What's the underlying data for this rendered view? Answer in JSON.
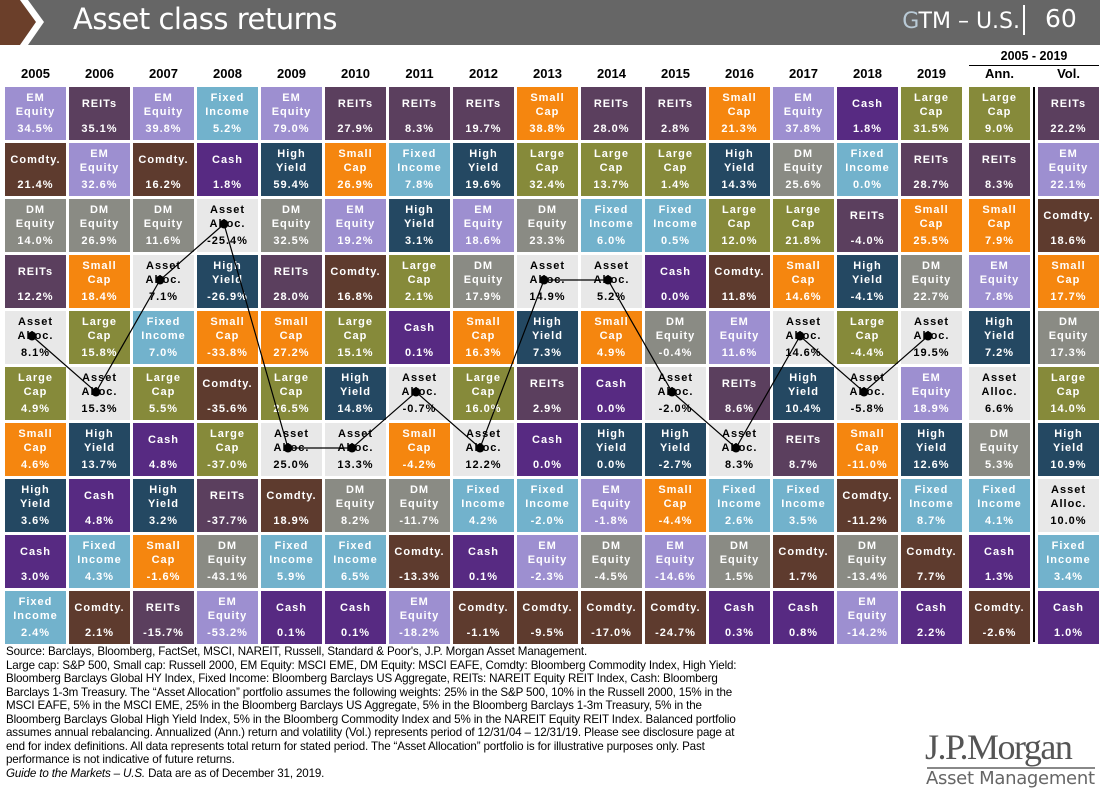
{
  "header": {
    "title": "Asset class returns",
    "gtm_prefix": "G",
    "gtm_rest": "TM – U.S.",
    "page_number": "60"
  },
  "range_label": "2005 - 2019",
  "columns": [
    "2005",
    "2006",
    "2007",
    "2008",
    "2009",
    "2010",
    "2011",
    "2012",
    "2013",
    "2014",
    "2015",
    "2016",
    "2017",
    "2018",
    "2019",
    "Ann.",
    "Vol."
  ],
  "assets": {
    "em": {
      "label": "EM\nEquity",
      "color": "#9d8fd0"
    },
    "reits": {
      "label": "REITs",
      "color": "#5b3f5e"
    },
    "fi": {
      "label": "Fixed\nIncome",
      "color": "#72b2cc"
    },
    "comdty": {
      "label": "Comdty.",
      "color": "#5e3b2e"
    },
    "cash": {
      "label": "Cash",
      "color": "#572a82"
    },
    "hy": {
      "label": "High\nYield",
      "color": "#244862"
    },
    "small": {
      "label": "Small\nCap",
      "color": "#f5860f"
    },
    "large": {
      "label": "Large\nCap",
      "color": "#868a3a"
    },
    "dm": {
      "label": "DM\nEquity",
      "color": "#8a8b84"
    },
    "aa": {
      "label": "Asset\nAlloc.",
      "color": "#e8e8e8",
      "text_color": "#000000"
    }
  },
  "grid": [
    [
      [
        "em",
        "34.5%"
      ],
      [
        "comdty",
        "21.4%"
      ],
      [
        "dm",
        "14.0%"
      ],
      [
        "reits",
        "12.2%"
      ],
      [
        "aa",
        "8.1%"
      ],
      [
        "large",
        "4.9%"
      ],
      [
        "small",
        "4.6%"
      ],
      [
        "hy",
        "3.6%"
      ],
      [
        "cash",
        "3.0%"
      ],
      [
        "fi",
        "2.4%"
      ]
    ],
    [
      [
        "reits",
        "35.1%"
      ],
      [
        "em",
        "32.6%"
      ],
      [
        "dm",
        "26.9%"
      ],
      [
        "small",
        "18.4%"
      ],
      [
        "large",
        "15.8%"
      ],
      [
        "aa",
        "15.3%"
      ],
      [
        "hy",
        "13.7%"
      ],
      [
        "cash",
        "4.8%"
      ],
      [
        "fi",
        "4.3%"
      ],
      [
        "comdty",
        "2.1%"
      ]
    ],
    [
      [
        "em",
        "39.8%"
      ],
      [
        "comdty",
        "16.2%"
      ],
      [
        "dm",
        "11.6%"
      ],
      [
        "aa",
        "7.1%"
      ],
      [
        "fi",
        "7.0%"
      ],
      [
        "large",
        "5.5%"
      ],
      [
        "cash",
        "4.8%"
      ],
      [
        "hy",
        "3.2%"
      ],
      [
        "small",
        "-1.6%"
      ],
      [
        "reits",
        "-15.7%"
      ]
    ],
    [
      [
        "fi",
        "5.2%"
      ],
      [
        "cash",
        "1.8%"
      ],
      [
        "aa",
        "-25.4%"
      ],
      [
        "hy",
        "-26.9%"
      ],
      [
        "small",
        "-33.8%"
      ],
      [
        "comdty",
        "-35.6%"
      ],
      [
        "large",
        "-37.0%"
      ],
      [
        "reits",
        "-37.7%"
      ],
      [
        "dm",
        "-43.1%"
      ],
      [
        "em",
        "-53.2%"
      ]
    ],
    [
      [
        "em",
        "79.0%"
      ],
      [
        "hy",
        "59.4%"
      ],
      [
        "dm",
        "32.5%"
      ],
      [
        "reits",
        "28.0%"
      ],
      [
        "small",
        "27.2%"
      ],
      [
        "large",
        "26.5%"
      ],
      [
        "aa",
        "25.0%"
      ],
      [
        "comdty",
        "18.9%"
      ],
      [
        "fi",
        "5.9%"
      ],
      [
        "cash",
        "0.1%"
      ]
    ],
    [
      [
        "reits",
        "27.9%"
      ],
      [
        "small",
        "26.9%"
      ],
      [
        "em",
        "19.2%"
      ],
      [
        "comdty",
        "16.8%"
      ],
      [
        "large",
        "15.1%"
      ],
      [
        "hy",
        "14.8%"
      ],
      [
        "aa",
        "13.3%"
      ],
      [
        "dm",
        "8.2%"
      ],
      [
        "fi",
        "6.5%"
      ],
      [
        "cash",
        "0.1%"
      ]
    ],
    [
      [
        "reits",
        "8.3%"
      ],
      [
        "fi",
        "7.8%"
      ],
      [
        "hy",
        "3.1%"
      ],
      [
        "large",
        "2.1%"
      ],
      [
        "cash",
        "0.1%"
      ],
      [
        "aa",
        "-0.7%"
      ],
      [
        "small",
        "-4.2%"
      ],
      [
        "dm",
        "-11.7%"
      ],
      [
        "comdty",
        "-13.3%"
      ],
      [
        "em",
        "-18.2%"
      ]
    ],
    [
      [
        "reits",
        "19.7%"
      ],
      [
        "hy",
        "19.6%"
      ],
      [
        "em",
        "18.6%"
      ],
      [
        "dm",
        "17.9%"
      ],
      [
        "small",
        "16.3%"
      ],
      [
        "large",
        "16.0%"
      ],
      [
        "aa",
        "12.2%"
      ],
      [
        "fi",
        "4.2%"
      ],
      [
        "cash",
        "0.1%"
      ],
      [
        "comdty",
        "-1.1%"
      ]
    ],
    [
      [
        "small",
        "38.8%"
      ],
      [
        "large",
        "32.4%"
      ],
      [
        "dm",
        "23.3%"
      ],
      [
        "aa",
        "14.9%"
      ],
      [
        "hy",
        "7.3%"
      ],
      [
        "reits",
        "2.9%"
      ],
      [
        "cash",
        "0.0%"
      ],
      [
        "fi",
        "-2.0%"
      ],
      [
        "em",
        "-2.3%"
      ],
      [
        "comdty",
        "-9.5%"
      ]
    ],
    [
      [
        "reits",
        "28.0%"
      ],
      [
        "large",
        "13.7%"
      ],
      [
        "fi",
        "6.0%"
      ],
      [
        "aa",
        "5.2%"
      ],
      [
        "small",
        "4.9%"
      ],
      [
        "cash",
        "0.0%"
      ],
      [
        "hy",
        "0.0%"
      ],
      [
        "em",
        "-1.8%"
      ],
      [
        "dm",
        "-4.5%"
      ],
      [
        "comdty",
        "-17.0%"
      ]
    ],
    [
      [
        "reits",
        "2.8%"
      ],
      [
        "large",
        "1.4%"
      ],
      [
        "fi",
        "0.5%"
      ],
      [
        "cash",
        "0.0%"
      ],
      [
        "dm",
        "-0.4%"
      ],
      [
        "aa",
        "-2.0%"
      ],
      [
        "hy",
        "-2.7%"
      ],
      [
        "small",
        "-4.4%"
      ],
      [
        "em",
        "-14.6%"
      ],
      [
        "comdty",
        "-24.7%"
      ]
    ],
    [
      [
        "small",
        "21.3%"
      ],
      [
        "hy",
        "14.3%"
      ],
      [
        "large",
        "12.0%"
      ],
      [
        "comdty",
        "11.8%"
      ],
      [
        "em",
        "11.6%"
      ],
      [
        "reits",
        "8.6%"
      ],
      [
        "aa",
        "8.3%"
      ],
      [
        "fi",
        "2.6%"
      ],
      [
        "dm",
        "1.5%"
      ],
      [
        "cash",
        "0.3%"
      ]
    ],
    [
      [
        "em",
        "37.8%"
      ],
      [
        "dm",
        "25.6%"
      ],
      [
        "large",
        "21.8%"
      ],
      [
        "small",
        "14.6%"
      ],
      [
        "aa",
        "14.6%"
      ],
      [
        "hy",
        "10.4%"
      ],
      [
        "reits",
        "8.7%"
      ],
      [
        "fi",
        "3.5%"
      ],
      [
        "comdty",
        "1.7%"
      ],
      [
        "cash",
        "0.8%"
      ]
    ],
    [
      [
        "cash",
        "1.8%"
      ],
      [
        "fi",
        "0.0%"
      ],
      [
        "reits",
        "-4.0%"
      ],
      [
        "hy",
        "-4.1%"
      ],
      [
        "large",
        "-4.4%"
      ],
      [
        "aa",
        "-5.8%"
      ],
      [
        "small",
        "-11.0%"
      ],
      [
        "comdty",
        "-11.2%"
      ],
      [
        "dm",
        "-13.4%"
      ],
      [
        "em",
        "-14.2%"
      ]
    ],
    [
      [
        "large",
        "31.5%"
      ],
      [
        "reits",
        "28.7%"
      ],
      [
        "small",
        "25.5%"
      ],
      [
        "dm",
        "22.7%"
      ],
      [
        "aa",
        "19.5%"
      ],
      [
        "em",
        "18.9%"
      ],
      [
        "hy",
        "12.6%"
      ],
      [
        "fi",
        "8.7%"
      ],
      [
        "comdty",
        "7.7%"
      ],
      [
        "cash",
        "2.2%"
      ]
    ],
    [
      [
        "large",
        "9.0%"
      ],
      [
        "reits",
        "8.3%"
      ],
      [
        "small",
        "7.9%"
      ],
      [
        "em",
        "7.8%"
      ],
      [
        "hy",
        "7.2%"
      ],
      [
        "aa",
        "6.6%"
      ],
      [
        "dm",
        "5.3%"
      ],
      [
        "fi",
        "4.1%"
      ],
      [
        "cash",
        "1.3%"
      ],
      [
        "comdty",
        "-2.6%"
      ]
    ],
    [
      [
        "reits",
        "22.2%"
      ],
      [
        "em",
        "22.1%"
      ],
      [
        "comdty",
        "18.6%"
      ],
      [
        "small",
        "17.7%"
      ],
      [
        "dm",
        "17.3%"
      ],
      [
        "large",
        "14.0%"
      ],
      [
        "hy",
        "10.9%"
      ],
      [
        "aa",
        "10.0%"
      ],
      [
        "fi",
        "3.4%"
      ],
      [
        "cash",
        "1.0%"
      ]
    ]
  ],
  "footer": {
    "lines": [
      "Source: Barclays, Bloomberg, FactSet, MSCI, NAREIT, Russell, Standard & Poor's, J.P. Morgan Asset Management.",
      "Large cap: S&P 500, Small cap: Russell 2000, EM Equity: MSCI EME, DM Equity: MSCI EAFE, Comdty: Bloomberg Commodity Index, High Yield:",
      "Bloomberg Barclays Global HY Index, Fixed Income: Bloomberg Barclays US Aggregate, REITs: NAREIT Equity REIT Index, Cash: Bloomberg",
      "Barclays 1-3m Treasury. The “Asset Allocation” portfolio assumes the following weights: 25% in the S&P 500, 10% in the Russell 2000, 15% in the",
      "MSCI EAFE, 5% in the MSCI EME, 25% in the Bloomberg Barclays US Aggregate, 5% in the Bloomberg Barclays 1-3m Treasury, 5% in the",
      "Bloomberg Barclays Global High Yield Index, 5% in the Bloomberg Commodity Index and 5% in the NAREIT Equity REIT Index. Balanced portfolio",
      "assumes annual rebalancing. Annualized (Ann.) return and volatility (Vol.) represents period of 12/31/04 – 12/31/19. Please see disclosure page at",
      "end for index definitions. All data represents total return for stated period. The “Asset Allocation” portfolio is for illustrative purposes only. Past",
      "performance is not indicative of future returns."
    ],
    "guide_italic": "Guide to the Markets – U.S.",
    "guide_rest": " Data are as of December 31, 2019."
  },
  "logo": {
    "line1": "J.P.Morgan",
    "line2": "Asset Management"
  }
}
